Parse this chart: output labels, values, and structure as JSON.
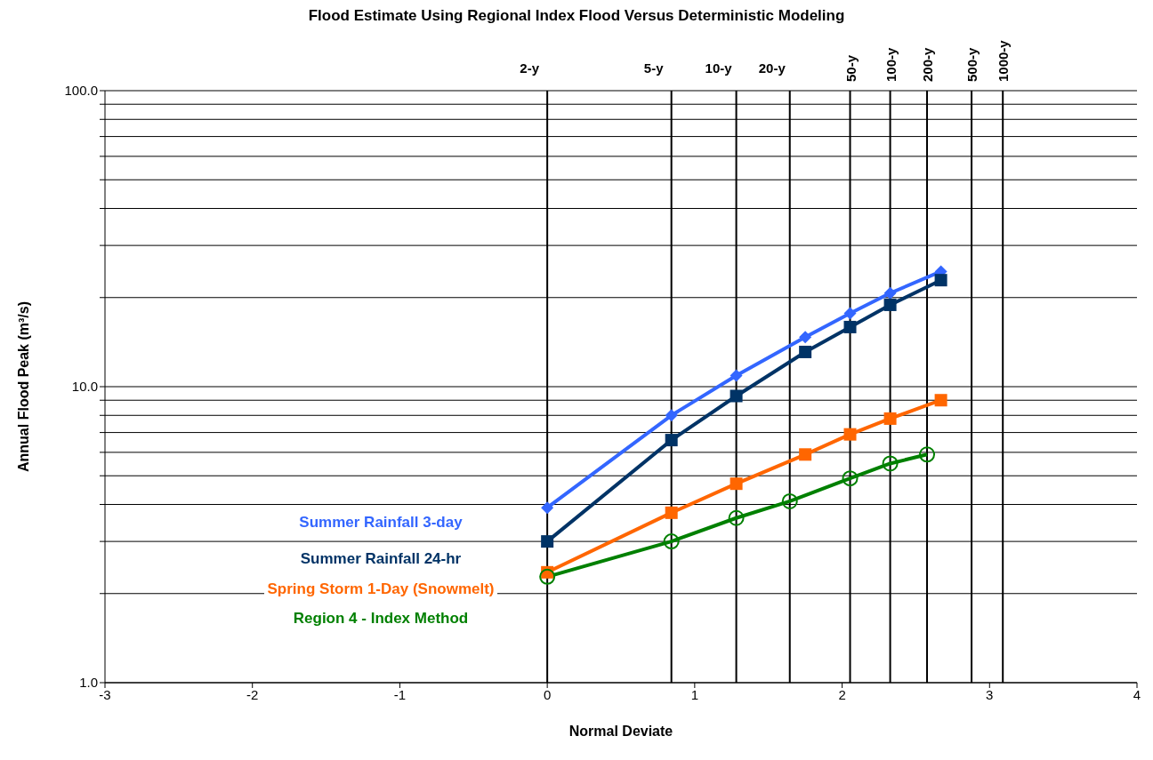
{
  "chart_data": {
    "type": "line",
    "title": "Flood Estimate Using Regional Index Flood Versus Deterministic Modeling",
    "xlabel": "Normal Deviate",
    "ylabel": "Annual Flood Peak (m³/s)",
    "series": [
      {
        "name": "Summer Rainfall 3-day",
        "color": "#3366ff",
        "marker": "diamond",
        "x": [
          0,
          0.842,
          1.282,
          1.75,
          2.054,
          2.326,
          2.67
        ],
        "values": [
          3.9,
          8.0,
          10.9,
          14.7,
          17.7,
          20.7,
          24.5
        ]
      },
      {
        "name": "Summer Rainfall 24-hr",
        "color": "#003366",
        "marker": "square",
        "x": [
          0,
          0.842,
          1.282,
          1.75,
          2.054,
          2.326,
          2.67
        ],
        "values": [
          3.0,
          6.6,
          9.3,
          13.1,
          15.9,
          18.9,
          22.9
        ]
      },
      {
        "name": "Spring Storm 1-Day (Snowmelt)",
        "color": "#ff6600",
        "marker": "square",
        "x": [
          0,
          0.842,
          1.282,
          1.75,
          2.054,
          2.326,
          2.67
        ],
        "values": [
          2.36,
          3.75,
          4.7,
          5.9,
          6.9,
          7.8,
          9.0
        ]
      },
      {
        "name": "Region 4 - Index Method",
        "color": "#008000",
        "marker": "circle",
        "x": [
          0,
          0.842,
          1.282,
          1.645,
          2.054,
          2.326,
          2.576
        ],
        "values": [
          2.28,
          3.0,
          3.6,
          4.1,
          4.9,
          5.5,
          5.9
        ]
      }
    ],
    "log": "y",
    "xlim": [
      -3,
      4
    ],
    "xticks": [
      -3,
      -2,
      -1,
      0,
      1,
      2,
      3,
      4
    ],
    "ylim": [
      1,
      100
    ],
    "yticks": [
      {
        "value": 1,
        "label": "1.0"
      },
      {
        "value": 2,
        "label": null
      },
      {
        "value": 3,
        "label": null
      },
      {
        "value": 4,
        "label": null
      },
      {
        "value": 5,
        "label": null
      },
      {
        "value": 6,
        "label": null
      },
      {
        "value": 7,
        "label": null
      },
      {
        "value": 8,
        "label": null
      },
      {
        "value": 9,
        "label": null
      },
      {
        "value": 10,
        "label": "10.0"
      },
      {
        "value": 20,
        "label": null
      },
      {
        "value": 30,
        "label": null
      },
      {
        "value": 40,
        "label": null
      },
      {
        "value": 50,
        "label": null
      },
      {
        "value": 60,
        "label": null
      },
      {
        "value": 70,
        "label": null
      },
      {
        "value": 80,
        "label": null
      },
      {
        "value": 90,
        "label": null
      },
      {
        "value": 100,
        "label": "100.0"
      }
    ],
    "grid": "y",
    "legend": false,
    "ref_lines": [
      {
        "axis": "x",
        "value": 0,
        "label": "2-y"
      },
      {
        "axis": "x",
        "value": 0.842,
        "label": "5-y"
      },
      {
        "axis": "x",
        "value": 1.282,
        "label": "10-y"
      },
      {
        "axis": "x",
        "value": 1.645,
        "label": "20-y"
      },
      {
        "axis": "x",
        "value": 2.054,
        "label": "50-y"
      },
      {
        "axis": "x",
        "value": 2.326,
        "label": "100-y"
      },
      {
        "axis": "x",
        "value": 2.576,
        "label": "200-y"
      },
      {
        "axis": "x",
        "value": 2.878,
        "label": "500-y"
      },
      {
        "axis": "x",
        "value": 3.09,
        "label": "1000-y"
      }
    ]
  }
}
